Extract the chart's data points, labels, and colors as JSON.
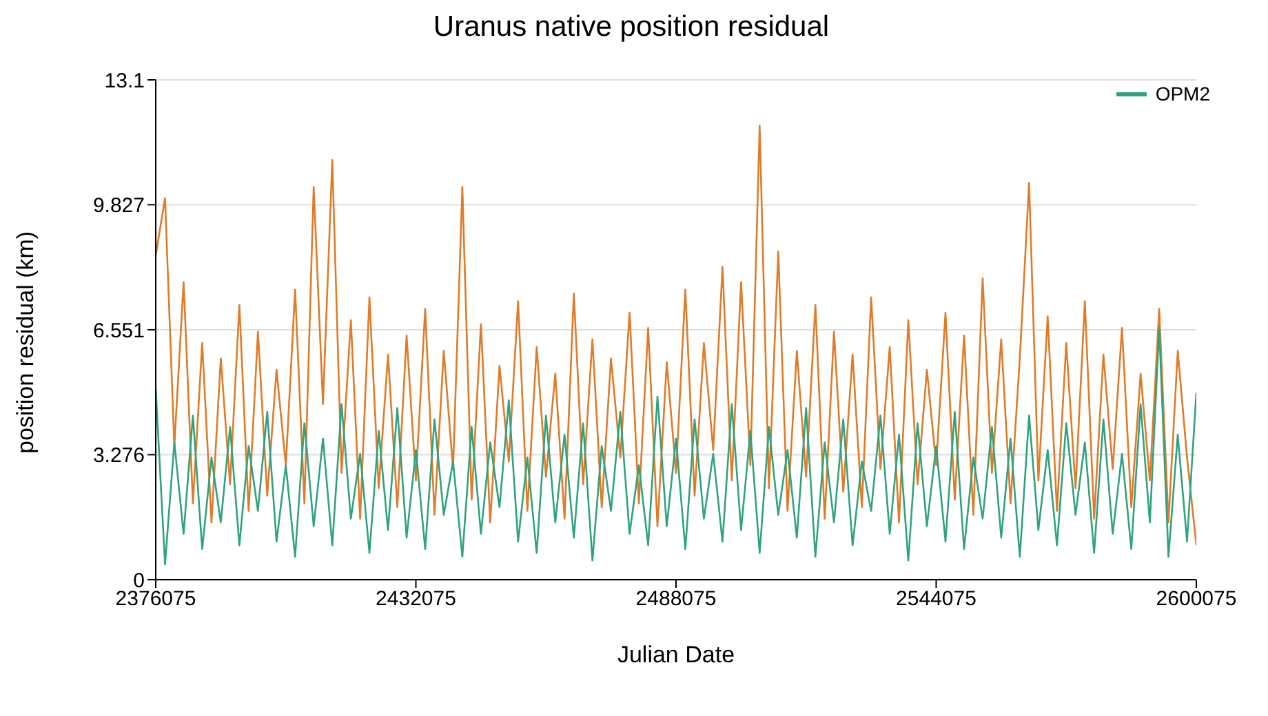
{
  "chart_data": {
    "type": "line",
    "title": "Uranus native position residual",
    "xlabel": "Julian Date",
    "ylabel": "position residual (km)",
    "x": [
      2376075,
      2378075,
      2380075,
      2382075,
      2384075,
      2386075,
      2388075,
      2390075,
      2392075,
      2394075,
      2396075,
      2398075,
      2400075,
      2402075,
      2404075,
      2406075,
      2408075,
      2410075,
      2412075,
      2414075,
      2416075,
      2418075,
      2420075,
      2422075,
      2424075,
      2426075,
      2428075,
      2430075,
      2432075,
      2434075,
      2436075,
      2438075,
      2440075,
      2442075,
      2444075,
      2446075,
      2448075,
      2450075,
      2452075,
      2454075,
      2456075,
      2458075,
      2460075,
      2462075,
      2464075,
      2466075,
      2468075,
      2470075,
      2472075,
      2474075,
      2476075,
      2478075,
      2480075,
      2482075,
      2484075,
      2486075,
      2488075,
      2490075,
      2492075,
      2494075,
      2496075,
      2498075,
      2500075,
      2502075,
      2504075,
      2506075,
      2508075,
      2510075,
      2512075,
      2514075,
      2516075,
      2518075,
      2520075,
      2522075,
      2524075,
      2526075,
      2528075,
      2530075,
      2532075,
      2534075,
      2536075,
      2538075,
      2540075,
      2542075,
      2544075,
      2546075,
      2548075,
      2550075,
      2552075,
      2554075,
      2556075,
      2558075,
      2560075,
      2562075,
      2564075,
      2566075,
      2568075,
      2570075,
      2572075,
      2574075,
      2576075,
      2578075,
      2580075,
      2582075,
      2584075,
      2586075,
      2588075,
      2590075,
      2592075,
      2594075,
      2596075,
      2598075,
      2600075
    ],
    "series": [
      {
        "color": "#e07b28",
        "values": [
          8.5,
          10.0,
          3.5,
          7.8,
          2.0,
          6.2,
          1.5,
          5.8,
          2.5,
          7.2,
          1.8,
          6.5,
          2.2,
          5.5,
          3.0,
          7.6,
          2.0,
          10.3,
          4.6,
          11.0,
          2.8,
          6.8,
          1.6,
          7.4,
          2.4,
          5.9,
          1.9,
          6.4,
          2.6,
          7.1,
          1.7,
          6.0,
          2.9,
          10.3,
          2.1,
          6.7,
          1.5,
          5.6,
          3.1,
          7.3,
          1.8,
          6.1,
          2.7,
          5.4,
          1.6,
          7.5,
          2.5,
          6.3,
          1.9,
          5.8,
          3.2,
          7.0,
          2.0,
          6.6,
          1.4,
          5.7,
          2.8,
          7.6,
          2.2,
          6.2,
          3.4,
          8.2,
          2.6,
          7.8,
          3.0,
          11.9,
          2.4,
          8.6,
          1.8,
          6.0,
          2.7,
          7.2,
          1.6,
          6.5,
          2.3,
          5.9,
          1.9,
          7.4,
          2.9,
          6.1,
          1.5,
          6.8,
          2.5,
          5.5,
          3.0,
          7.0,
          2.1,
          6.4,
          1.7,
          7.9,
          2.8,
          6.3,
          2.0,
          5.8,
          10.4,
          2.6,
          6.9,
          1.8,
          6.2,
          2.4,
          7.3,
          1.6,
          5.9,
          2.9,
          6.6,
          1.9,
          5.4,
          2.6,
          7.1,
          1.5,
          6.0,
          3.2,
          0.9
        ]
      },
      {
        "name": "OPM2",
        "color": "#2fa37f",
        "values": [
          5.0,
          0.4,
          3.6,
          1.2,
          4.3,
          0.8,
          3.2,
          1.5,
          4.0,
          0.9,
          3.5,
          1.8,
          4.4,
          1.0,
          3.0,
          0.6,
          4.1,
          1.4,
          3.7,
          0.9,
          4.6,
          1.6,
          3.3,
          0.7,
          3.9,
          1.3,
          4.5,
          1.1,
          3.4,
          0.8,
          4.2,
          1.7,
          3.1,
          0.6,
          4.0,
          1.2,
          3.6,
          1.9,
          4.7,
          1.0,
          3.2,
          0.7,
          4.3,
          1.5,
          3.8,
          1.1,
          4.1,
          0.5,
          3.5,
          1.8,
          4.4,
          1.2,
          3.0,
          0.9,
          4.8,
          1.4,
          3.7,
          0.8,
          4.2,
          1.6,
          3.3,
          1.0,
          4.6,
          1.3,
          3.9,
          0.7,
          4.0,
          1.7,
          3.4,
          1.1,
          4.5,
          0.6,
          3.6,
          1.5,
          4.2,
          0.9,
          3.1,
          1.8,
          4.3,
          1.2,
          3.8,
          0.5,
          4.1,
          1.4,
          3.5,
          1.0,
          4.4,
          0.8,
          3.2,
          1.6,
          4.0,
          1.1,
          3.7,
          0.6,
          4.3,
          1.3,
          3.4,
          0.9,
          4.1,
          1.7,
          3.6,
          0.7,
          4.2,
          1.2,
          3.3,
          0.8,
          4.6,
          1.5,
          6.6,
          0.6,
          3.8,
          1.0,
          4.9
        ]
      }
    ],
    "xlim": [
      2376075,
      2600075
    ],
    "xticks": [
      2376075,
      2432075,
      2488075,
      2544075,
      2600075
    ],
    "ylim": [
      0,
      13.1
    ],
    "yticks": [
      0,
      3.276,
      6.551,
      9.827,
      13.1
    ],
    "grid": "y",
    "legend": "top right",
    "marker": "none",
    "line_style": "solid"
  }
}
